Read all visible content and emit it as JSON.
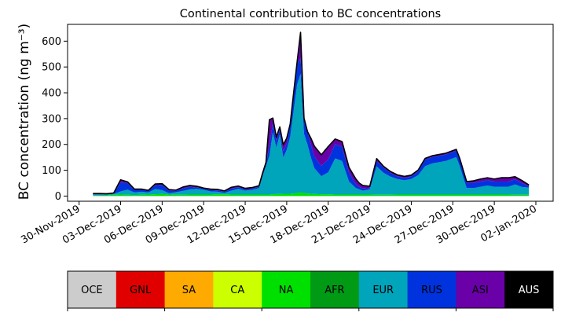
{
  "chart_data": {
    "type": "area",
    "title": "Continental contribution to BC concentrations",
    "ylabel": "BC concentration (ng m⁻³)",
    "ylim": [
      -20,
      665
    ],
    "yticks": [
      0,
      100,
      200,
      300,
      400,
      500,
      600
    ],
    "xlim": [
      "2019-11-29T04:00",
      "2020-01-03T06:00"
    ],
    "xticks": [
      "2019-11-30",
      "2019-12-03",
      "2019-12-06",
      "2019-12-09",
      "2019-12-12",
      "2019-12-15",
      "2019-12-18",
      "2019-12-21",
      "2019-12-24",
      "2019-12-27",
      "2019-12-30",
      "2020-01-02"
    ],
    "xtick_labels": [
      "30-Nov-2019",
      "03-Dec-2019",
      "06-Dec-2019",
      "09-Dec-2019",
      "12-Dec-2019",
      "15-Dec-2019",
      "18-Dec-2019",
      "21-Dec-2019",
      "24-Dec-2019",
      "27-Dec-2019",
      "30-Dec-2019",
      "02-Jan-2020"
    ],
    "stack_order": [
      "OCE",
      "GNL",
      "SA",
      "CA",
      "NA",
      "AFR",
      "EUR",
      "RUS",
      "ASI",
      "AUS"
    ],
    "legend": [
      {
        "name": "OCE",
        "color": "#cccccc"
      },
      {
        "name": "GNL",
        "color": "#e00000"
      },
      {
        "name": "SA",
        "color": "#ffaa00"
      },
      {
        "name": "CA",
        "color": "#ccff00"
      },
      {
        "name": "NA",
        "color": "#00e000"
      },
      {
        "name": "AFR",
        "color": "#009a15"
      },
      {
        "name": "EUR",
        "color": "#00a4bb"
      },
      {
        "name": "RUS",
        "color": "#0033dd"
      },
      {
        "name": "ASI",
        "color": "#6a00a8"
      },
      {
        "name": "AUS",
        "color": "#000000"
      }
    ],
    "x": [
      "2019-12-01T00:00",
      "2019-12-01T12:00",
      "2019-12-02T00:00",
      "2019-12-02T12:00",
      "2019-12-03T00:00",
      "2019-12-03T12:00",
      "2019-12-04T00:00",
      "2019-12-04T12:00",
      "2019-12-05T00:00",
      "2019-12-05T12:00",
      "2019-12-06T00:00",
      "2019-12-06T12:00",
      "2019-12-07T00:00",
      "2019-12-07T12:00",
      "2019-12-08T00:00",
      "2019-12-08T12:00",
      "2019-12-09T00:00",
      "2019-12-09T12:00",
      "2019-12-10T00:00",
      "2019-12-10T12:00",
      "2019-12-11T00:00",
      "2019-12-11T12:00",
      "2019-12-12T00:00",
      "2019-12-12T12:00",
      "2019-12-13T00:00",
      "2019-12-13T06:00",
      "2019-12-13T12:00",
      "2019-12-13T18:00",
      "2019-12-14T00:00",
      "2019-12-14T06:00",
      "2019-12-14T12:00",
      "2019-12-14T18:00",
      "2019-12-15T00:00",
      "2019-12-15T06:00",
      "2019-12-15T12:00",
      "2019-12-15T18:00",
      "2019-12-16T00:00",
      "2019-12-16T06:00",
      "2019-12-16T12:00",
      "2019-12-16T18:00",
      "2019-12-17T00:00",
      "2019-12-17T12:00",
      "2019-12-18T00:00",
      "2019-12-18T12:00",
      "2019-12-19T00:00",
      "2019-12-19T12:00",
      "2019-12-20T00:00",
      "2019-12-20T06:00",
      "2019-12-20T12:00",
      "2019-12-21T00:00",
      "2019-12-21T12:00",
      "2019-12-22T00:00",
      "2019-12-22T12:00",
      "2019-12-23T00:00",
      "2019-12-23T12:00",
      "2019-12-24T00:00",
      "2019-12-24T12:00",
      "2019-12-25T00:00",
      "2019-12-25T12:00",
      "2019-12-26T00:00",
      "2019-12-26T12:00",
      "2019-12-27T00:00",
      "2019-12-27T06:00",
      "2019-12-27T12:00",
      "2019-12-28T00:00",
      "2019-12-28T12:00",
      "2019-12-29T00:00",
      "2019-12-29T12:00",
      "2019-12-30T00:00",
      "2019-12-30T12:00",
      "2019-12-31T00:00",
      "2019-12-31T12:00",
      "2020-01-01T00:00",
      "2020-01-01T12:00"
    ],
    "series": [
      {
        "name": "OCE",
        "values": [
          0,
          0,
          0,
          0,
          0,
          0,
          0,
          0,
          0,
          0,
          0,
          0,
          0,
          0,
          0,
          0,
          0,
          0,
          0,
          0,
          0,
          0,
          0,
          0,
          0,
          0,
          0,
          0,
          0,
          0,
          0,
          0,
          0,
          0,
          0,
          0,
          0,
          0,
          0,
          0,
          0,
          0,
          0,
          0,
          0,
          0,
          0,
          0,
          0,
          0,
          0,
          0,
          0,
          0,
          0,
          0,
          0,
          0,
          0,
          0,
          0,
          0,
          0,
          0,
          0,
          0,
          0,
          0,
          0,
          0,
          0,
          0,
          0,
          0
        ]
      },
      {
        "name": "GNL",
        "values": [
          0,
          0,
          0,
          0,
          0,
          0,
          0,
          0,
          0,
          0,
          0,
          0,
          0,
          0,
          0,
          0,
          0,
          0,
          0,
          0,
          0,
          0,
          0,
          0,
          0,
          0,
          0,
          0,
          0,
          0,
          0,
          0,
          0,
          0,
          0,
          0,
          0,
          0,
          0,
          0,
          0,
          0,
          0,
          0,
          0,
          0,
          0,
          0,
          0,
          0,
          0,
          0,
          0,
          0,
          0,
          0,
          0,
          0,
          0,
          0,
          0,
          0,
          0,
          0,
          0,
          0,
          0,
          0,
          0,
          0,
          0,
          0,
          0,
          0
        ]
      },
      {
        "name": "SA",
        "values": [
          0,
          0,
          0,
          0,
          0,
          0,
          0,
          0,
          0,
          0,
          0,
          0,
          0,
          0,
          0,
          0,
          0,
          0,
          0,
          0,
          0,
          0,
          0,
          0,
          0,
          0,
          0,
          0,
          0,
          0,
          0,
          0,
          0,
          0,
          0,
          0,
          0,
          0,
          0,
          0,
          0,
          0,
          0,
          0,
          0,
          0,
          0,
          0,
          0,
          0,
          0,
          0,
          0,
          0,
          0,
          0,
          0,
          0,
          0,
          0,
          0,
          0,
          0,
          0,
          0,
          0,
          0,
          0,
          0,
          0,
          0,
          0,
          0,
          0
        ]
      },
      {
        "name": "CA",
        "values": [
          0,
          0,
          0,
          0,
          0,
          0,
          0,
          0,
          0,
          0,
          0,
          0,
          0,
          0,
          0,
          0,
          0,
          0,
          0,
          0,
          0,
          0,
          0,
          0,
          0,
          0,
          0,
          0,
          0,
          0,
          0,
          0,
          0,
          0,
          0,
          0,
          0,
          0,
          0,
          0,
          0,
          0,
          0,
          0,
          0,
          0,
          0,
          0,
          0,
          0,
          0,
          0,
          0,
          0,
          0,
          0,
          0,
          0,
          0,
          0,
          0,
          0,
          0,
          0,
          0,
          0,
          0,
          0,
          0,
          0,
          0,
          0,
          0,
          0
        ]
      },
      {
        "name": "NA",
        "values": [
          2,
          3,
          3,
          5,
          6,
          5,
          4,
          5,
          6,
          7,
          8,
          6,
          5,
          5,
          6,
          6,
          6,
          6,
          7,
          7,
          6,
          6,
          6,
          6,
          6,
          6,
          6,
          6,
          7,
          8,
          8,
          9,
          9,
          9,
          10,
          12,
          14,
          12,
          10,
          9,
          8,
          7,
          7,
          6,
          6,
          6,
          6,
          6,
          6,
          6,
          5,
          5,
          5,
          6,
          6,
          6,
          6,
          6,
          6,
          6,
          6,
          6,
          6,
          6,
          6,
          6,
          6,
          6,
          6,
          6,
          6,
          5,
          5,
          5
        ]
      },
      {
        "name": "AFR",
        "values": [
          0,
          0,
          0,
          0,
          0,
          0,
          0,
          0,
          0,
          0,
          0,
          0,
          0,
          0,
          0,
          0,
          0,
          0,
          0,
          0,
          0,
          0,
          0,
          0,
          0,
          0,
          0,
          0,
          0,
          0,
          0,
          0,
          0,
          0,
          0,
          0,
          0,
          0,
          0,
          0,
          0,
          0,
          0,
          0,
          0,
          0,
          0,
          0,
          0,
          0,
          0,
          0,
          0,
          0,
          0,
          0,
          0,
          0,
          0,
          0,
          0,
          0,
          0,
          0,
          0,
          0,
          0,
          0,
          0,
          0,
          0,
          0,
          0,
          0
        ]
      },
      {
        "name": "EUR",
        "values": [
          3,
          2,
          3,
          3,
          12,
          20,
          10,
          12,
          8,
          20,
          15,
          5,
          10,
          15,
          20,
          22,
          18,
          12,
          10,
          5,
          15,
          22,
          15,
          18,
          25,
          70,
          110,
          150,
          240,
          180,
          230,
          140,
          170,
          220,
          320,
          420,
          460,
          230,
          190,
          140,
          100,
          70,
          85,
          140,
          130,
          50,
          25,
          20,
          15,
          20,
          110,
          85,
          70,
          60,
          55,
          60,
          75,
          110,
          120,
          125,
          130,
          140,
          145,
          110,
          25,
          25,
          30,
          35,
          30,
          30,
          30,
          40,
          30,
          28
        ]
      },
      {
        "name": "RUS",
        "values": [
          2,
          2,
          1,
          2,
          35,
          25,
          10,
          8,
          6,
          15,
          20,
          10,
          5,
          10,
          10,
          5,
          5,
          5,
          5,
          5,
          8,
          6,
          5,
          5,
          5,
          8,
          10,
          40,
          35,
          25,
          20,
          25,
          25,
          50,
          70,
          80,
          60,
          60,
          50,
          50,
          45,
          40,
          50,
          55,
          55,
          35,
          15,
          10,
          8,
          5,
          20,
          20,
          15,
          10,
          10,
          10,
          15,
          25,
          25,
          25,
          25,
          25,
          25,
          25,
          20,
          20,
          20,
          20,
          20,
          20,
          20,
          20,
          15,
          5
        ]
      },
      {
        "name": "ASI",
        "values": [
          3,
          3,
          2,
          2,
          10,
          5,
          3,
          2,
          2,
          5,
          5,
          4,
          3,
          5,
          5,
          5,
          2,
          4,
          4,
          3,
          5,
          5,
          4,
          4,
          4,
          4,
          4,
          100,
          20,
          15,
          10,
          25,
          20,
          0,
          0,
          7,
          100,
          0,
          0,
          25,
          40,
          43,
          50,
          20,
          20,
          20,
          20,
          14,
          12,
          7,
          10,
          5,
          5,
          6,
          5,
          5,
          5,
          5,
          5,
          5,
          5,
          5,
          5,
          5,
          5,
          8,
          10,
          10,
          10,
          15,
          15,
          10,
          10,
          5
        ]
      },
      {
        "name": "AUS",
        "values": [
          0,
          0,
          0,
          0,
          0,
          0,
          0,
          0,
          0,
          0,
          0,
          0,
          0,
          0,
          0,
          0,
          0,
          0,
          0,
          0,
          0,
          0,
          0,
          0,
          0,
          0,
          0,
          0,
          0,
          0,
          0,
          0,
          0,
          0,
          0,
          0,
          0,
          0,
          0,
          0,
          0,
          0,
          0,
          0,
          0,
          0,
          0,
          0,
          0,
          0,
          0,
          0,
          0,
          0,
          0,
          0,
          0,
          0,
          0,
          0,
          0,
          0,
          0,
          0,
          0,
          0,
          0,
          0,
          0,
          0,
          0,
          0,
          0,
          0
        ]
      }
    ]
  }
}
